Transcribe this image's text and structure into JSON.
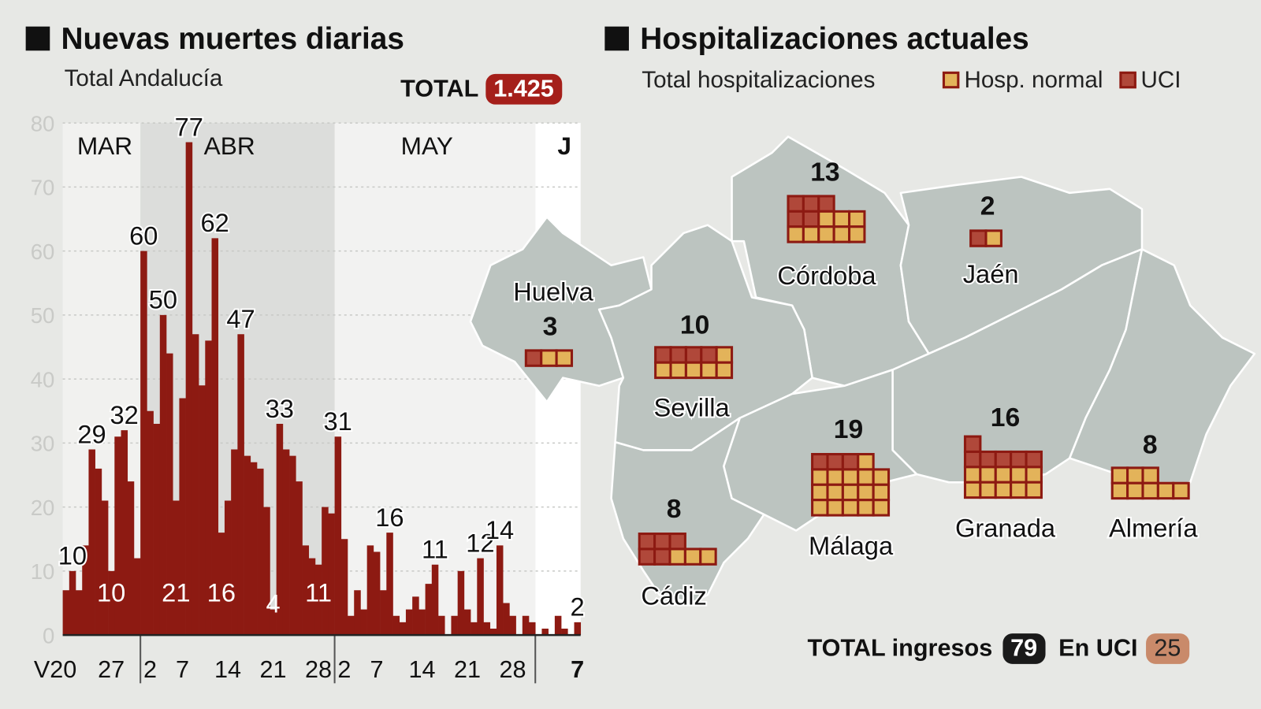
{
  "left": {
    "title": "Nuevas muertes diarias",
    "subtitle": "Total Andalucía",
    "total_label": "TOTAL",
    "total_value": "1.425"
  },
  "right": {
    "title": "Hospitalizaciones actuales",
    "subtitle": "Total hospitalizaciones",
    "legend": [
      {
        "label": "Hosp. normal",
        "color": "#e3b35a"
      },
      {
        "label": "UCI",
        "color": "#b0483a"
      }
    ],
    "total_label": "TOTAL ingresos",
    "total_value": "79",
    "uci_label": "En UCI",
    "uci_value": "25"
  },
  "colors": {
    "bar": "#8d1a12",
    "badge_red": "#a51f1a",
    "badge_uci": "#c98a6a",
    "map": "#bcc4c0",
    "normal": "#e3b35a",
    "uci": "#b0483a"
  },
  "chart_data": [
    {
      "type": "bar",
      "title": "Nuevas muertes diarias",
      "subtitle": "Total Andalucía",
      "ylim": [
        0,
        80
      ],
      "yticks": [
        0,
        10,
        20,
        30,
        40,
        50,
        60,
        70,
        80
      ],
      "grid": true,
      "months": [
        {
          "label": "MAR",
          "from": "Mar 20",
          "to": "Mar 31"
        },
        {
          "label": "ABR",
          "from": "Apr 1",
          "to": "Apr 30"
        },
        {
          "label": "MAY",
          "from": "May 1",
          "to": "May 31"
        },
        {
          "label": "J",
          "from": "Jun 1",
          "to": "Jun 7"
        }
      ],
      "xticks": [
        {
          "at": "Mar 20",
          "label": "V20"
        },
        {
          "at": "Mar 27",
          "label": "27"
        },
        {
          "at": "Apr 2",
          "label": "2"
        },
        {
          "at": "Apr 7",
          "label": "7"
        },
        {
          "at": "Apr 14",
          "label": "14"
        },
        {
          "at": "Apr 21",
          "label": "21"
        },
        {
          "at": "Apr 28",
          "label": "28"
        },
        {
          "at": "May 2",
          "label": "2"
        },
        {
          "at": "May 7",
          "label": "7"
        },
        {
          "at": "May 14",
          "label": "14"
        },
        {
          "at": "May 21",
          "label": "21"
        },
        {
          "at": "May 28",
          "label": "28"
        },
        {
          "at": "Jun 7",
          "label": "7"
        }
      ],
      "categories": [
        "Mar 20",
        "Mar 21",
        "Mar 22",
        "Mar 23",
        "Mar 24",
        "Mar 25",
        "Mar 26",
        "Mar 27",
        "Mar 28",
        "Mar 29",
        "Mar 30",
        "Mar 31",
        "Apr 1",
        "Apr 2",
        "Apr 3",
        "Apr 4",
        "Apr 5",
        "Apr 6",
        "Apr 7",
        "Apr 8",
        "Apr 9",
        "Apr 10",
        "Apr 11",
        "Apr 12",
        "Apr 13",
        "Apr 14",
        "Apr 15",
        "Apr 16",
        "Apr 17",
        "Apr 18",
        "Apr 19",
        "Apr 20",
        "Apr 21",
        "Apr 22",
        "Apr 23",
        "Apr 24",
        "Apr 25",
        "Apr 26",
        "Apr 27",
        "Apr 28",
        "Apr 29",
        "Apr 30",
        "May 1",
        "May 2",
        "May 3",
        "May 4",
        "May 5",
        "May 6",
        "May 7",
        "May 8",
        "May 9",
        "May 10",
        "May 11",
        "May 12",
        "May 13",
        "May 14",
        "May 15",
        "May 16",
        "May 17",
        "May 18",
        "May 19",
        "May 20",
        "May 21",
        "May 22",
        "May 23",
        "May 24",
        "May 25",
        "May 26",
        "May 27",
        "May 28",
        "May 29",
        "May 30",
        "May 31",
        "Jun 1",
        "Jun 2",
        "Jun 3",
        "Jun 4",
        "Jun 5",
        "Jun 6",
        "Jun 7"
      ],
      "values": [
        7,
        10,
        7,
        14,
        29,
        26,
        21,
        10,
        31,
        32,
        24,
        12,
        60,
        35,
        33,
        50,
        44,
        21,
        37,
        77,
        47,
        39,
        46,
        62,
        16,
        21,
        29,
        47,
        28,
        27,
        26,
        20,
        4,
        33,
        29,
        28,
        24,
        14,
        12,
        11,
        20,
        19,
        31,
        15,
        3,
        7,
        4,
        14,
        13,
        7,
        16,
        3,
        2,
        4,
        6,
        4,
        8,
        11,
        3,
        0,
        3,
        10,
        4,
        2,
        12,
        2,
        1,
        14,
        5,
        3,
        0,
        3,
        2,
        0,
        1,
        0,
        3,
        1,
        0,
        2
      ],
      "annotations": [
        {
          "at": "Mar 21",
          "label": "10",
          "style": "above"
        },
        {
          "at": "Mar 24",
          "label": "29",
          "style": "above"
        },
        {
          "at": "Mar 29",
          "label": "32",
          "style": "above"
        },
        {
          "at": "Mar 27",
          "label": "10",
          "style": "inside"
        },
        {
          "at": "Apr 1",
          "label": "60",
          "style": "above"
        },
        {
          "at": "Apr 4",
          "label": "50",
          "style": "above"
        },
        {
          "at": "Apr 6",
          "label": "21",
          "style": "inside"
        },
        {
          "at": "Apr 8",
          "label": "77",
          "style": "above"
        },
        {
          "at": "Apr 12",
          "label": "62",
          "style": "above"
        },
        {
          "at": "Apr 13",
          "label": "16",
          "style": "inside"
        },
        {
          "at": "Apr 16",
          "label": "47",
          "style": "above"
        },
        {
          "at": "Apr 21",
          "label": "4",
          "style": "inside"
        },
        {
          "at": "Apr 22",
          "label": "33",
          "style": "above"
        },
        {
          "at": "Apr 28",
          "label": "11",
          "style": "inside"
        },
        {
          "at": "May 1",
          "label": "31",
          "style": "above"
        },
        {
          "at": "May 9",
          "label": "16",
          "style": "above"
        },
        {
          "at": "May 16",
          "label": "11",
          "style": "above"
        },
        {
          "at": "May 23",
          "label": "12",
          "style": "above"
        },
        {
          "at": "May 26",
          "label": "14",
          "style": "above"
        },
        {
          "at": "Jun 7",
          "label": "2",
          "style": "above"
        }
      ]
    },
    {
      "type": "map",
      "title": "Hospitalizaciones actuales",
      "series": [
        {
          "name": "Hosp. normal"
        },
        {
          "name": "UCI"
        }
      ],
      "provinces": [
        {
          "name": "Huelva",
          "total": 3,
          "uci": 1,
          "normal": 2
        },
        {
          "name": "Córdoba",
          "total": 13,
          "uci": 5,
          "normal": 8
        },
        {
          "name": "Jaén",
          "total": 2,
          "uci": 1,
          "normal": 1
        },
        {
          "name": "Sevilla",
          "total": 10,
          "uci": 4,
          "normal": 6
        },
        {
          "name": "Cádiz",
          "total": 8,
          "uci": 5,
          "normal": 3
        },
        {
          "name": "Málaga",
          "total": 19,
          "uci": 3,
          "normal": 16
        },
        {
          "name": "Granada",
          "total": 16,
          "uci": 6,
          "normal": 10
        },
        {
          "name": "Almería",
          "total": 8,
          "uci": 0,
          "normal": 8
        }
      ]
    }
  ]
}
